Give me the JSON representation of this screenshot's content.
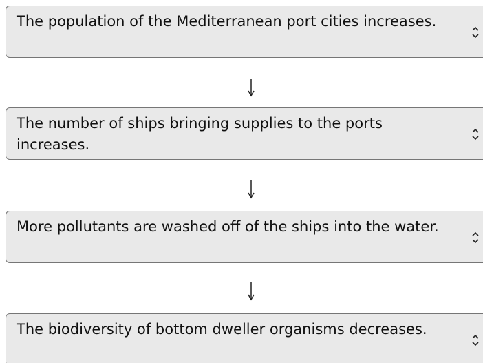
{
  "items": [
    {
      "text": "The population of the Mediterranean port cities increases."
    },
    {
      "text": "The number of ships bringing supplies to the ports increases."
    },
    {
      "text": "More pollutants are washed off of the ships into the water."
    },
    {
      "text": "The biodiversity of bottom dweller organisms decreases."
    }
  ]
}
